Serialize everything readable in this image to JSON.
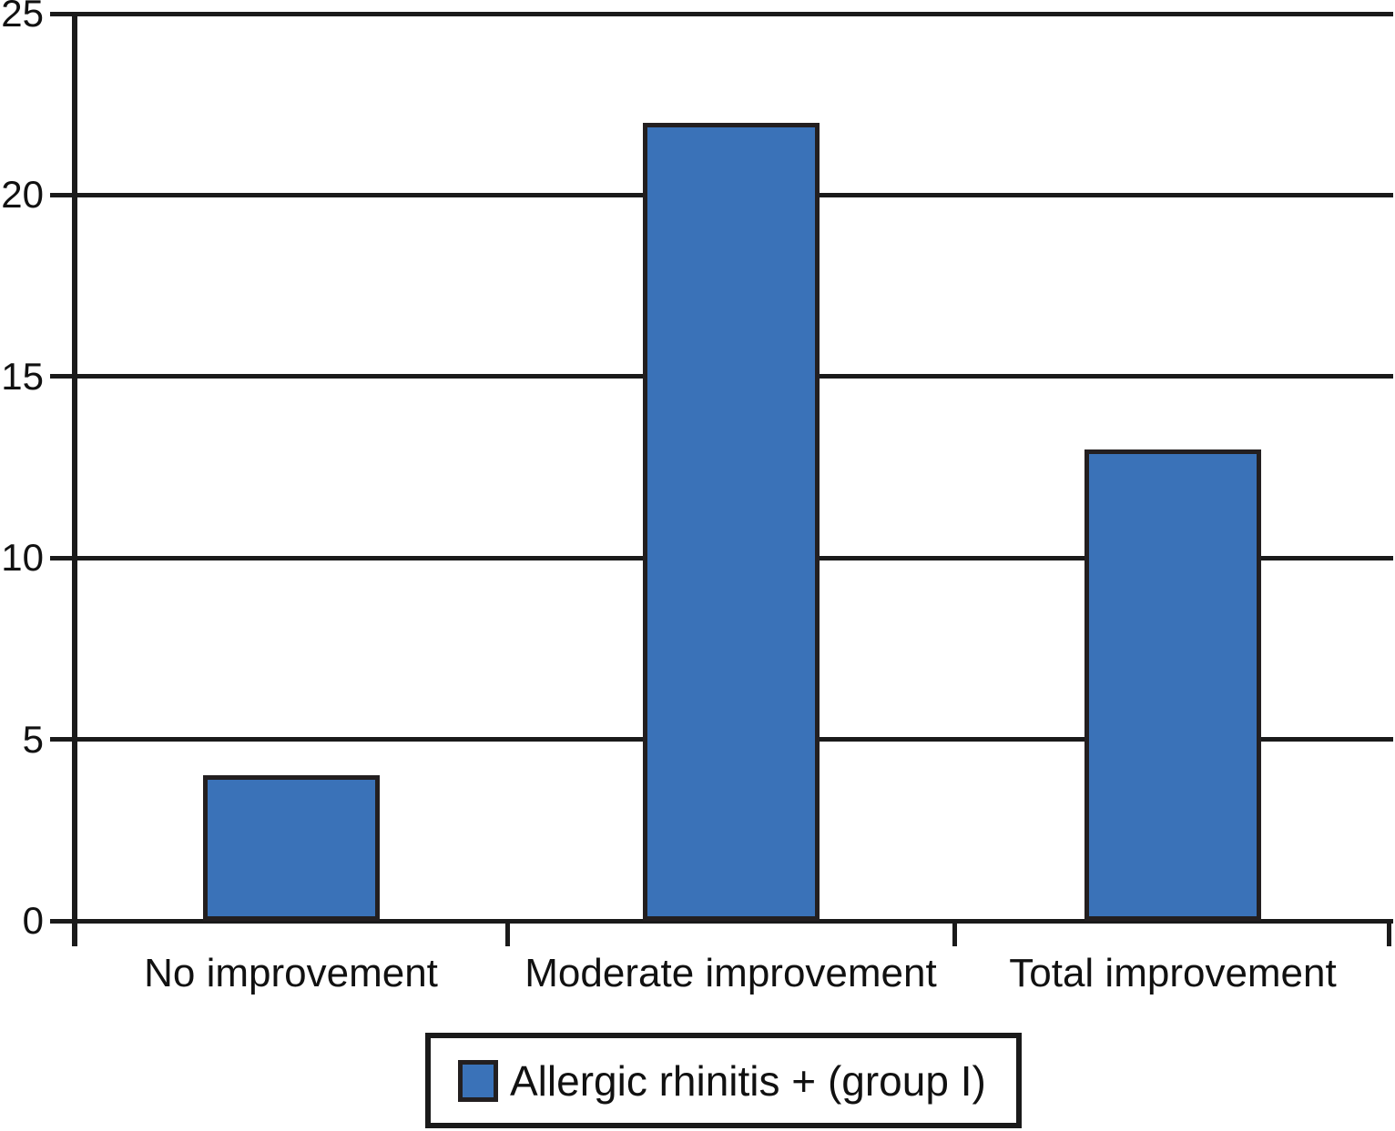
{
  "chart_data": {
    "type": "bar",
    "categories": [
      "No improvement",
      "Moderate improvement",
      "Total improvement"
    ],
    "values": [
      4,
      22,
      13
    ],
    "series": [
      {
        "name": "Allergic rhinitis + (group I)",
        "values": [
          4,
          22,
          13
        ]
      }
    ],
    "title": "",
    "xlabel": "",
    "ylabel": "",
    "ylim": [
      0,
      25
    ],
    "yticks": [
      0,
      5,
      10,
      15,
      20,
      25
    ],
    "grid": true,
    "legend_position": "bottom",
    "colors": {
      "bar_fill": "#3a72b8",
      "bar_border": "#231f20",
      "axis": "#1a1a1a",
      "text": "#111111",
      "background": "#ffffff"
    }
  },
  "legend": {
    "label": "Allergic rhinitis + (group I)"
  }
}
